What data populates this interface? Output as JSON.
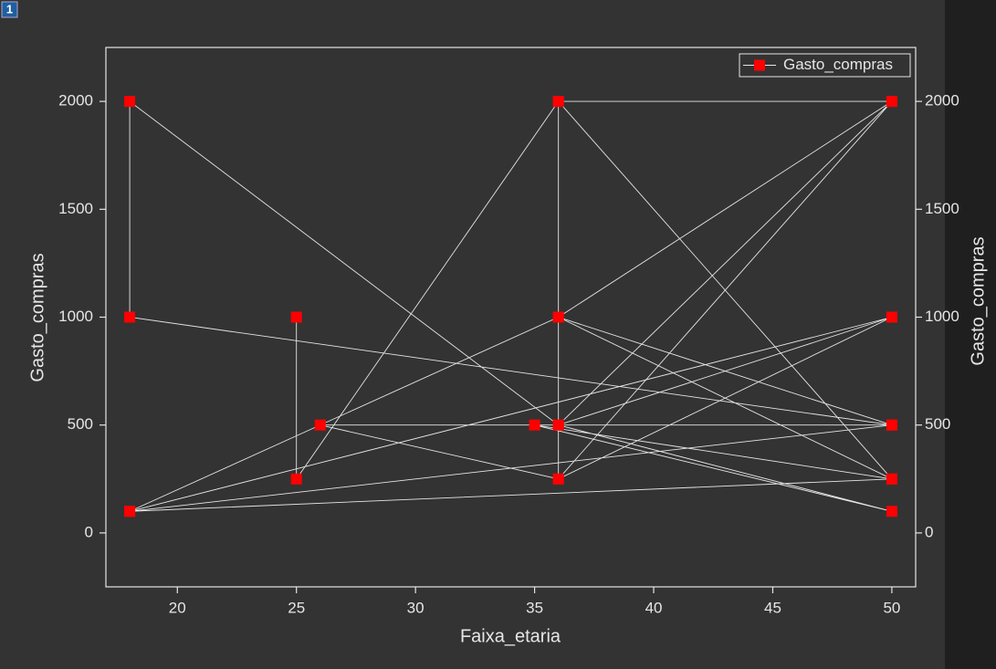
{
  "badge": "1",
  "chart_data": {
    "type": "line",
    "x_label": "Faixa_etaria",
    "y_label": "Gasto_compras",
    "xlim": [
      17,
      51
    ],
    "xticks": [
      20,
      25,
      30,
      35,
      40,
      45,
      50
    ],
    "ylim": [
      -250,
      2250
    ],
    "yticks": [
      0,
      500,
      1000,
      1500,
      2000
    ],
    "legend": "upper right",
    "line_color": "#e6e6e6",
    "series": [
      {
        "name": "Gasto_compras",
        "color": "#ff0000",
        "x": [
          25,
          25,
          36,
          50,
          36,
          50,
          36,
          50,
          36,
          50,
          36,
          36,
          26,
          50,
          18,
          18,
          36,
          50,
          35,
          50,
          18,
          36,
          50,
          18,
          50
        ],
        "values": [
          1000,
          250,
          2000,
          2000,
          500,
          1000,
          250,
          2000,
          1000,
          250,
          2000,
          250,
          500,
          500,
          1000,
          2000,
          500,
          100,
          500,
          250,
          100,
          1000,
          500,
          100,
          1000
        ]
      }
    ]
  }
}
